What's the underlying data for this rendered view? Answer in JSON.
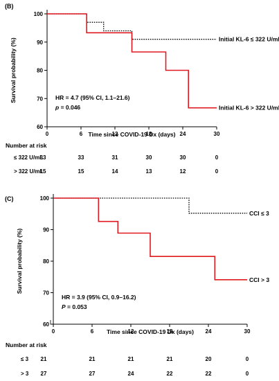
{
  "chart_data": [
    {
      "type": "line",
      "panel_label": "(B)",
      "title": "",
      "xlabel": "Time since COVID-19 Dx (days)",
      "ylabel": "Survival probability (%)",
      "xlim": [
        0,
        30
      ],
      "ylim": [
        60,
        100
      ],
      "xticks": [
        0,
        6,
        12,
        18,
        24,
        30
      ],
      "yticks": [
        60,
        70,
        80,
        90,
        100
      ],
      "grid": false,
      "annotation": {
        "hr_text": "HR = 4.7 (95% CI, 1.1–21.6)",
        "p_label": "p",
        "p_value": " = 0.046"
      },
      "series": [
        {
          "name": "Initial KL-6 ≤ 322 U/mL",
          "style": "dotted",
          "color": "#000000",
          "steps": [
            [
              0,
              100
            ],
            [
              7,
              100
            ],
            [
              7,
              97
            ],
            [
              10,
              97
            ],
            [
              10,
              94
            ],
            [
              15,
              94
            ],
            [
              15,
              91
            ],
            [
              30,
              91
            ]
          ]
        },
        {
          "name": "Initial KL-6 > 322 U/mL",
          "style": "solid",
          "color": "#e0191f",
          "steps": [
            [
              0,
              100
            ],
            [
              7,
              100
            ],
            [
              7,
              93.3
            ],
            [
              15,
              93.3
            ],
            [
              15,
              86.5
            ],
            [
              21,
              86.5
            ],
            [
              21,
              80
            ],
            [
              25,
              80
            ],
            [
              25,
              66.7
            ],
            [
              30,
              66.7
            ]
          ]
        }
      ],
      "risk_table": {
        "title": "Number at risk",
        "times": [
          0,
          6,
          12,
          18,
          24,
          30
        ],
        "rows": [
          {
            "label": "≤ 322 U/mL",
            "values": [
              "33",
              "33",
              "31",
              "30",
              "30",
              "0"
            ]
          },
          {
            "label": "> 322 U/mL",
            "values": [
              "15",
              "15",
              "14",
              "13",
              "12",
              "0"
            ]
          }
        ]
      }
    },
    {
      "type": "line",
      "panel_label": "(C)",
      "title": "",
      "xlabel": "Time since COVID-19 Dx (days)",
      "ylabel": "Survival probability (%)",
      "xlim": [
        0,
        30
      ],
      "ylim": [
        60,
        100
      ],
      "xticks": [
        0,
        6,
        12,
        18,
        24,
        30
      ],
      "yticks": [
        60,
        70,
        80,
        90,
        100
      ],
      "grid": false,
      "annotation": {
        "hr_text": "HR = 3.9 (95% CI, 0.9–16.2)",
        "p_label": "P",
        "p_value": " = 0.053"
      },
      "series": [
        {
          "name": "CCI ≤ 3",
          "style": "dotted",
          "color": "#000000",
          "steps": [
            [
              0,
              100
            ],
            [
              21,
              100
            ],
            [
              21,
              95.2
            ],
            [
              30,
              95.2
            ]
          ]
        },
        {
          "name": "CCI > 3",
          "style": "solid",
          "color": "#e0191f",
          "steps": [
            [
              0,
              100
            ],
            [
              7,
              100
            ],
            [
              7,
              92.6
            ],
            [
              10,
              92.6
            ],
            [
              10,
              88.9
            ],
            [
              15,
              88.9
            ],
            [
              15,
              81.5
            ],
            [
              25,
              81.5
            ],
            [
              25,
              74.1
            ],
            [
              30,
              74.1
            ]
          ]
        }
      ],
      "risk_table": {
        "title": "Number at risk",
        "times": [
          0,
          6,
          12,
          18,
          24,
          30
        ],
        "rows": [
          {
            "label": "≤ 3",
            "values": [
              "21",
              "21",
              "21",
              "21",
              "20",
              "0"
            ]
          },
          {
            "label": "> 3",
            "values": [
              "27",
              "27",
              "24",
              "22",
              "22",
              "0"
            ]
          }
        ]
      }
    }
  ]
}
